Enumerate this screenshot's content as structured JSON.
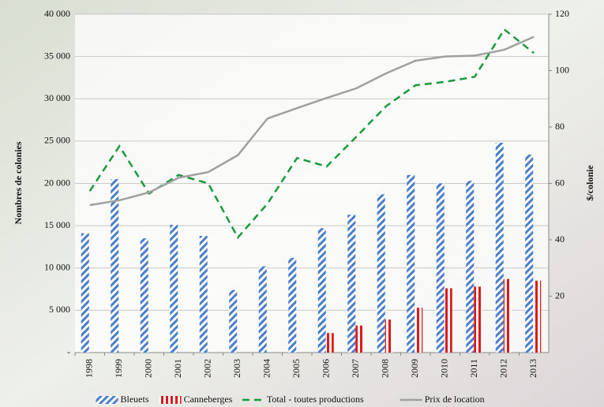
{
  "chart_data": {
    "type": "combo",
    "y_label": "Nombres de colonies",
    "y2_label": "$/colonie",
    "categories": [
      "1998",
      "1999",
      "2000",
      "2001",
      "2002",
      "2003",
      "2004",
      "2005",
      "2006",
      "2007",
      "2008",
      "2009",
      "2010",
      "2011",
      "2012",
      "2013"
    ],
    "ylim": [
      0,
      40000
    ],
    "yticks": [
      {
        "value": 0,
        "label": "-"
      },
      {
        "value": 5000,
        "label": "5 000"
      },
      {
        "value": 10000,
        "label": "10 000"
      },
      {
        "value": 15000,
        "label": "15 000"
      },
      {
        "value": 20000,
        "label": "20 000"
      },
      {
        "value": 25000,
        "label": "25 000"
      },
      {
        "value": 30000,
        "label": "30 000"
      },
      {
        "value": 35000,
        "label": "35 000"
      },
      {
        "value": 40000,
        "label": "40 000"
      }
    ],
    "y2lim": [
      0,
      120
    ],
    "y2ticks": [
      20,
      40,
      60,
      80,
      100,
      120
    ],
    "grid": true,
    "legend": "bottom",
    "series": [
      {
        "name": "Bleuets",
        "type": "bar",
        "color": "#4a7ec8",
        "values": [
          14100,
          20500,
          13500,
          15100,
          13800,
          7400,
          10200,
          11200,
          14700,
          16300,
          18700,
          21000,
          20000,
          20300,
          24800,
          23400
        ]
      },
      {
        "name": "Canneberges",
        "type": "bar",
        "color": "#e01818",
        "values": [
          null,
          null,
          null,
          null,
          null,
          null,
          null,
          null,
          2300,
          3200,
          3900,
          5300,
          7600,
          7800,
          8700,
          8500
        ]
      },
      {
        "name": "Total - toutes productions",
        "type": "dashed-line",
        "color": "#1a9a3a",
        "values": [
          19100,
          24400,
          18800,
          21000,
          20000,
          13600,
          17600,
          23000,
          22000,
          25500,
          29100,
          31600,
          32000,
          32600,
          38200,
          35400
        ]
      },
      {
        "name": "Prix de location",
        "type": "line",
        "axis": "y2",
        "color": "#a0a0a0",
        "values": [
          52.3,
          54,
          56.8,
          62,
          64,
          70,
          83,
          86.7,
          90.3,
          93.7,
          99,
          103.5,
          105,
          105.3,
          107.4,
          112
        ]
      }
    ]
  }
}
